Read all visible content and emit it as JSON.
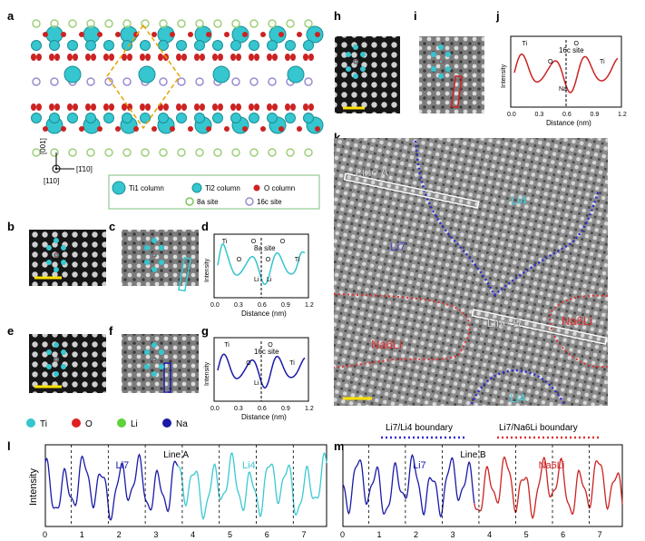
{
  "panel_labels": [
    "a",
    "b",
    "c",
    "d",
    "e",
    "f",
    "g",
    "h",
    "i",
    "j",
    "k",
    "l",
    "m"
  ],
  "panel_a": {
    "axis_vertical": "[001]",
    "axis_horizontal": "[1̄10]",
    "axis_view": "[110]",
    "legend": [
      {
        "label": "Ti1 column",
        "color": "#35c6cf"
      },
      {
        "label": "Ti2 column",
        "color": "#35c6cf"
      },
      {
        "label": "O column",
        "color": "#cc2222"
      },
      {
        "label": "8a site",
        "color": "#9ed07a"
      },
      {
        "label": "16c site",
        "color": "#9a8cd0"
      }
    ]
  },
  "atom_key": [
    {
      "label": "Ti",
      "color": "#35c6cf"
    },
    {
      "label": "O",
      "color": "#e02020"
    },
    {
      "label": "Li",
      "color": "#5fd13b"
    },
    {
      "label": "Na",
      "color": "#1a1aa8"
    }
  ],
  "profiles": {
    "d": {
      "color": "#35c4cf",
      "annotation": "8a site",
      "peak_labels": [
        "Ti",
        "O",
        "O",
        "O",
        "O",
        "Ti"
      ],
      "site_labels": [
        "Li",
        "Li"
      ],
      "xlabel": "Distance (nm)",
      "ylabel": "Intensity",
      "ticks": [
        "0.0",
        "0.3",
        "0.6",
        "0.9",
        "1.2"
      ]
    },
    "g": {
      "color": "#1a1aa8",
      "annotation": "16c site",
      "peak_labels": [
        "Ti",
        "O",
        "O",
        "Ti"
      ],
      "site_labels": [
        "Li"
      ],
      "xlabel": "Distance (nm)",
      "ylabel": "Intensity",
      "ticks": [
        "0.0",
        "0.3",
        "0.6",
        "0.9",
        "1.2"
      ]
    },
    "j": {
      "color": "#cc2222",
      "annotation": "16c site",
      "peak_labels": [
        "Ti",
        "O",
        "O",
        "Ti"
      ],
      "site_labels": [
        "Na"
      ],
      "xlabel": "Distance (nm)",
      "ylabel": "Intensity",
      "ticks": [
        "0.0",
        "0.3",
        "0.6",
        "0.9",
        "1.2"
      ]
    }
  },
  "panel_k": {
    "line_a": "Line A",
    "line_b": "Line B",
    "regions": [
      {
        "label": "Li4",
        "color": "#40d4e0"
      },
      {
        "label": "Li7",
        "color": "#4a4ad0"
      },
      {
        "label": "Na6Li",
        "color": "#e03030"
      },
      {
        "label": "Na6Li",
        "color": "#e03030"
      },
      {
        "label": "Li4",
        "color": "#40d4e0"
      }
    ],
    "boundaries": [
      {
        "label": "Li7/Li4 boundary",
        "color": "#2a2ad0"
      },
      {
        "label": "Li7/Na6Li boundary",
        "color": "#e03030"
      }
    ]
  },
  "panel_l": {
    "ylabel": "Intensity",
    "line_label": "Line A",
    "segments": [
      {
        "label": "Li7",
        "color": "#1a1aa8"
      },
      {
        "label": "Li4",
        "color": "#3cc8d2"
      }
    ],
    "ticks": [
      "0",
      "1",
      "2",
      "3",
      "4",
      "5",
      "6",
      "7"
    ]
  },
  "panel_m": {
    "line_label": "Line B",
    "segments": [
      {
        "label": "Li7",
        "color": "#1a1aa8"
      },
      {
        "label": "Na6Li",
        "color": "#cc2222"
      }
    ],
    "ticks": [
      "0",
      "1",
      "2",
      "3",
      "4",
      "5",
      "6",
      "7"
    ]
  }
}
